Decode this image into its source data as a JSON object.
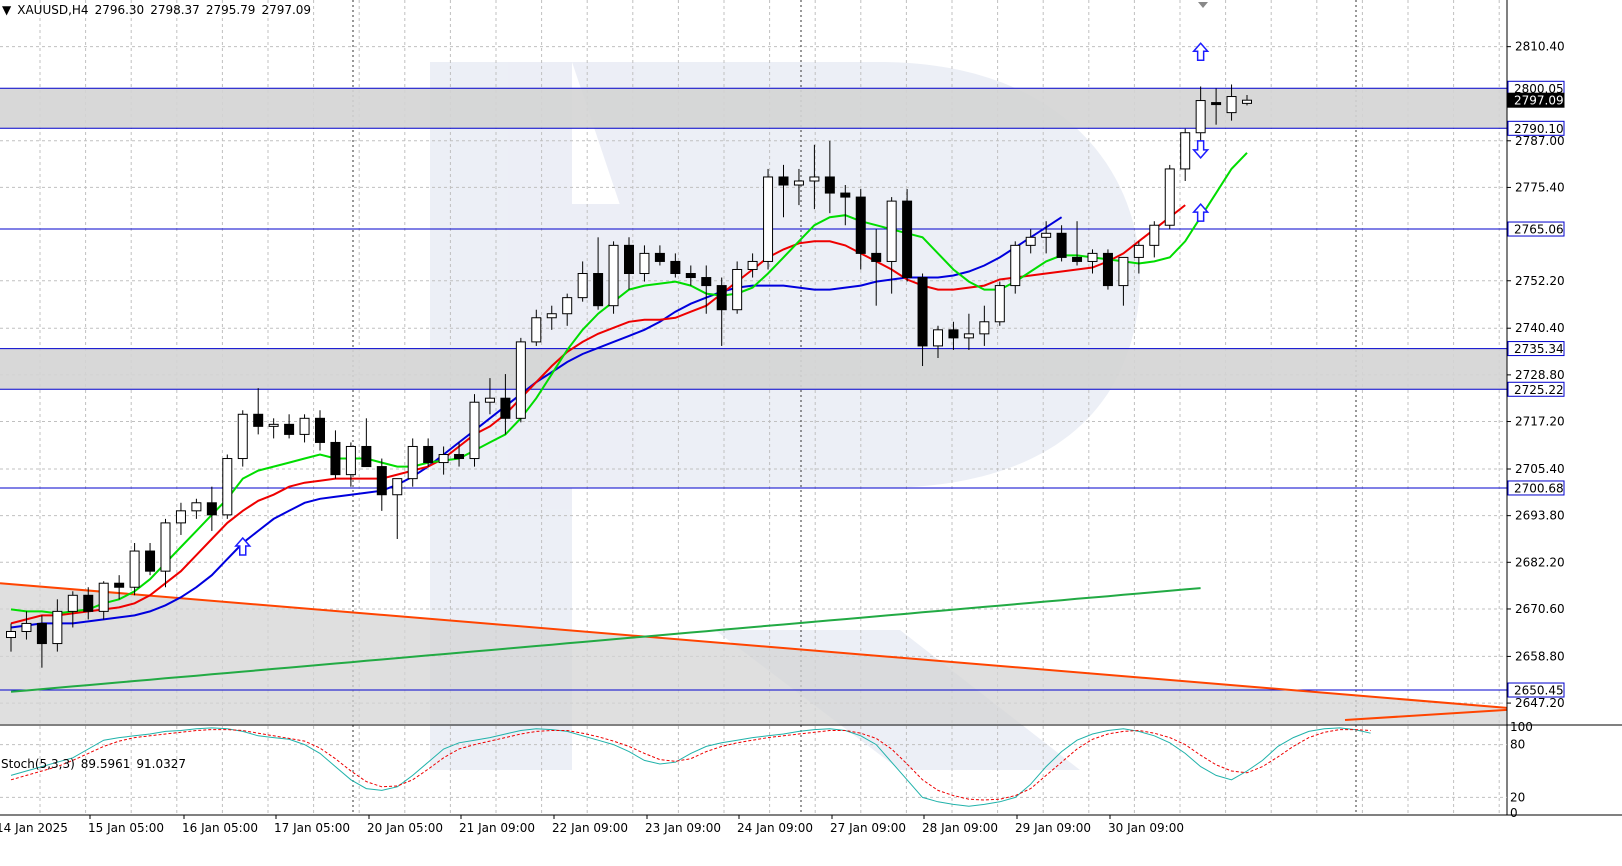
{
  "header": {
    "symbol": "XAUUSD,H4",
    "open": "2796.30",
    "high": "2798.37",
    "low": "2795.79",
    "close": "2797.09"
  },
  "stoch_header": {
    "label": "Stoch(5,3,3)",
    "main": "89.5961",
    "signal": "91.0327"
  },
  "colors": {
    "background": "#ffffff",
    "grid": "#c0c0c0",
    "level_line": "#0000cc",
    "zone_fill": "#d4d4d4",
    "ma_fast": "#00dd00",
    "ma_mid": "#ee0000",
    "ma_slow": "#0000dd",
    "ma_long": "#22aa44",
    "trendline": "#ff4400",
    "stoch_main": "#20b2aa",
    "stoch_signal": "#ee0000",
    "candle_up": "#ffffff",
    "candle_down": "#000000",
    "arrow": "#1c1cff"
  },
  "chart_data": {
    "type": "candlestick",
    "symbol": "XAUUSD",
    "timeframe": "H4",
    "ylim": [
      2642.0,
      2822.0
    ],
    "y_ticks": [
      "2810.40",
      "2787.00",
      "2775.40",
      "2752.20",
      "2740.40",
      "2728.80",
      "2717.20",
      "2705.40",
      "2693.80",
      "2682.20",
      "2670.60",
      "2658.80",
      "2647.20"
    ],
    "x_labels": [
      "14 Jan 2025",
      "15 Jan 05:00",
      "16 Jan 05:00",
      "17 Jan 05:00",
      "20 Jan 05:00",
      "21 Jan 09:00",
      "22 Jan 09:00",
      "23 Jan 09:00",
      "24 Jan 09:00",
      "27 Jan 09:00",
      "28 Jan 09:00",
      "29 Jan 09:00",
      "30 Jan 09:00"
    ],
    "levels": [
      {
        "label": "2800.05",
        "value": 2800.05
      },
      {
        "label": "2797.09",
        "value": 2797.09,
        "current": true
      },
      {
        "label": "2790.10",
        "value": 2790.1
      },
      {
        "label": "2765.06",
        "value": 2765.06
      },
      {
        "label": "2735.34",
        "value": 2735.34
      },
      {
        "label": "2725.22",
        "value": 2725.22
      },
      {
        "label": "2700.68",
        "value": 2700.68
      },
      {
        "label": "2650.45",
        "value": 2650.45
      }
    ],
    "zones": [
      {
        "from": 2790.1,
        "to": 2800.05
      },
      {
        "from": 2725.22,
        "to": 2735.34
      }
    ],
    "candles": [
      {
        "o": 2663.5,
        "h": 2667.0,
        "l": 2660.0,
        "c": 2665.0
      },
      {
        "o": 2665.0,
        "h": 2670.0,
        "l": 2663.0,
        "c": 2667.0
      },
      {
        "o": 2667.0,
        "h": 2669.0,
        "l": 2656.0,
        "c": 2662.0
      },
      {
        "o": 2662.0,
        "h": 2673.0,
        "l": 2660.0,
        "c": 2670.0
      },
      {
        "o": 2670.0,
        "h": 2675.0,
        "l": 2666.0,
        "c": 2674.0
      },
      {
        "o": 2674.0,
        "h": 2676.0,
        "l": 2668.0,
        "c": 2670.0
      },
      {
        "o": 2670.0,
        "h": 2677.5,
        "l": 2668.0,
        "c": 2677.0
      },
      {
        "o": 2677.0,
        "h": 2679.0,
        "l": 2673.0,
        "c": 2676.0
      },
      {
        "o": 2676.0,
        "h": 2687.0,
        "l": 2674.0,
        "c": 2685.0
      },
      {
        "o": 2685.0,
        "h": 2687.0,
        "l": 2679.0,
        "c": 2680.0
      },
      {
        "o": 2680.0,
        "h": 2693.0,
        "l": 2676.0,
        "c": 2692.0
      },
      {
        "o": 2692.0,
        "h": 2697.0,
        "l": 2689.0,
        "c": 2695.0
      },
      {
        "o": 2695.0,
        "h": 2698.0,
        "l": 2693.0,
        "c": 2697.0
      },
      {
        "o": 2697.0,
        "h": 2701.0,
        "l": 2690.0,
        "c": 2694.0
      },
      {
        "o": 2694.0,
        "h": 2709.0,
        "l": 2693.0,
        "c": 2708.0
      },
      {
        "o": 2708.0,
        "h": 2720.0,
        "l": 2706.0,
        "c": 2719.0
      },
      {
        "o": 2719.0,
        "h": 2725.5,
        "l": 2714.0,
        "c": 2716.0
      },
      {
        "o": 2716.0,
        "h": 2718.0,
        "l": 2713.0,
        "c": 2716.5
      },
      {
        "o": 2716.5,
        "h": 2719.0,
        "l": 2713.0,
        "c": 2714.0
      },
      {
        "o": 2714.0,
        "h": 2719.0,
        "l": 2712.0,
        "c": 2718.0
      },
      {
        "o": 2718.0,
        "h": 2720.0,
        "l": 2710.0,
        "c": 2712.0
      },
      {
        "o": 2712.0,
        "h": 2715.0,
        "l": 2703.0,
        "c": 2704.0
      },
      {
        "o": 2704.0,
        "h": 2712.0,
        "l": 2701.0,
        "c": 2711.0
      },
      {
        "o": 2711.0,
        "h": 2718.0,
        "l": 2706.0,
        "c": 2706.0
      },
      {
        "o": 2706.0,
        "h": 2708.0,
        "l": 2695.0,
        "c": 2699.0
      },
      {
        "o": 2699.0,
        "h": 2703.0,
        "l": 2688.0,
        "c": 2703.0
      },
      {
        "o": 2703.0,
        "h": 2713.0,
        "l": 2701.0,
        "c": 2711.0
      },
      {
        "o": 2711.0,
        "h": 2713.0,
        "l": 2706.0,
        "c": 2707.0
      },
      {
        "o": 2707.0,
        "h": 2711.0,
        "l": 2704.0,
        "c": 2709.0
      },
      {
        "o": 2709.0,
        "h": 2712.0,
        "l": 2706.0,
        "c": 2708.0
      },
      {
        "o": 2708.0,
        "h": 2724.0,
        "l": 2706.0,
        "c": 2722.0
      },
      {
        "o": 2722.0,
        "h": 2728.0,
        "l": 2719.0,
        "c": 2723.0
      },
      {
        "o": 2723.0,
        "h": 2729.0,
        "l": 2714.0,
        "c": 2718.0
      },
      {
        "o": 2718.0,
        "h": 2738.0,
        "l": 2717.0,
        "c": 2737.0
      },
      {
        "o": 2737.0,
        "h": 2745.0,
        "l": 2736.0,
        "c": 2743.0
      },
      {
        "o": 2743.0,
        "h": 2746.0,
        "l": 2740.0,
        "c": 2744.0
      },
      {
        "o": 2744.0,
        "h": 2749.0,
        "l": 2741.0,
        "c": 2748.0
      },
      {
        "o": 2748.0,
        "h": 2757.0,
        "l": 2747.0,
        "c": 2754.0
      },
      {
        "o": 2754.0,
        "h": 2763.0,
        "l": 2745.0,
        "c": 2746.0
      },
      {
        "o": 2746.0,
        "h": 2762.0,
        "l": 2744.0,
        "c": 2761.0
      },
      {
        "o": 2761.0,
        "h": 2763.0,
        "l": 2750.0,
        "c": 2754.0
      },
      {
        "o": 2754.0,
        "h": 2761.0,
        "l": 2752.0,
        "c": 2759.0
      },
      {
        "o": 2759.0,
        "h": 2761.0,
        "l": 2756.0,
        "c": 2757.0
      },
      {
        "o": 2757.0,
        "h": 2759.0,
        "l": 2753.0,
        "c": 2754.0
      },
      {
        "o": 2754.0,
        "h": 2756.0,
        "l": 2751.0,
        "c": 2753.0
      },
      {
        "o": 2753.0,
        "h": 2756.0,
        "l": 2744.0,
        "c": 2751.0
      },
      {
        "o": 2751.0,
        "h": 2753.0,
        "l": 2736.0,
        "c": 2745.0
      },
      {
        "o": 2745.0,
        "h": 2757.0,
        "l": 2744.0,
        "c": 2755.0
      },
      {
        "o": 2755.0,
        "h": 2759.0,
        "l": 2753.0,
        "c": 2757.0
      },
      {
        "o": 2757.0,
        "h": 2780.0,
        "l": 2755.0,
        "c": 2778.0
      },
      {
        "o": 2778.0,
        "h": 2781.0,
        "l": 2768.0,
        "c": 2776.0
      },
      {
        "o": 2776.0,
        "h": 2780.0,
        "l": 2771.0,
        "c": 2777.0
      },
      {
        "o": 2777.0,
        "h": 2786.0,
        "l": 2770.0,
        "c": 2778.0
      },
      {
        "o": 2778.0,
        "h": 2787.0,
        "l": 2769.0,
        "c": 2774.0
      },
      {
        "o": 2774.0,
        "h": 2776.0,
        "l": 2766.0,
        "c": 2773.0
      },
      {
        "o": 2773.0,
        "h": 2775.0,
        "l": 2755.0,
        "c": 2759.0
      },
      {
        "o": 2759.0,
        "h": 2765.0,
        "l": 2746.0,
        "c": 2757.0
      },
      {
        "o": 2757.0,
        "h": 2773.0,
        "l": 2749.0,
        "c": 2772.0
      },
      {
        "o": 2772.0,
        "h": 2775.0,
        "l": 2752.0,
        "c": 2753.0
      },
      {
        "o": 2753.0,
        "h": 2754.0,
        "l": 2731.0,
        "c": 2736.0
      },
      {
        "o": 2736.0,
        "h": 2741.0,
        "l": 2733.0,
        "c": 2740.0
      },
      {
        "o": 2740.0,
        "h": 2742.0,
        "l": 2735.0,
        "c": 2738.0
      },
      {
        "o": 2738.0,
        "h": 2744.0,
        "l": 2735.0,
        "c": 2739.0
      },
      {
        "o": 2739.0,
        "h": 2746.0,
        "l": 2736.0,
        "c": 2742.0
      },
      {
        "o": 2742.0,
        "h": 2752.0,
        "l": 2741.0,
        "c": 2751.0
      },
      {
        "o": 2751.0,
        "h": 2762.0,
        "l": 2749.0,
        "c": 2761.0
      },
      {
        "o": 2761.0,
        "h": 2765.0,
        "l": 2759.0,
        "c": 2763.0
      },
      {
        "o": 2763.0,
        "h": 2767.0,
        "l": 2759.0,
        "c": 2764.0
      },
      {
        "o": 2764.0,
        "h": 2766.0,
        "l": 2757.0,
        "c": 2758.0
      },
      {
        "o": 2758.0,
        "h": 2767.0,
        "l": 2756.0,
        "c": 2757.0
      },
      {
        "o": 2757.0,
        "h": 2760.0,
        "l": 2754.0,
        "c": 2759.0
      },
      {
        "o": 2759.0,
        "h": 2760.0,
        "l": 2750.0,
        "c": 2751.0
      },
      {
        "o": 2751.0,
        "h": 2758.0,
        "l": 2746.0,
        "c": 2758.0
      },
      {
        "o": 2758.0,
        "h": 2762.0,
        "l": 2754.0,
        "c": 2761.0
      },
      {
        "o": 2761.0,
        "h": 2767.0,
        "l": 2758.0,
        "c": 2766.0
      },
      {
        "o": 2766.0,
        "h": 2781.0,
        "l": 2765.0,
        "c": 2780.0
      },
      {
        "o": 2780.0,
        "h": 2790.0,
        "l": 2777.0,
        "c": 2789.0
      },
      {
        "o": 2789.0,
        "h": 2800.5,
        "l": 2786.0,
        "c": 2797.0
      },
      {
        "o": 2796.5,
        "h": 2800.0,
        "l": 2791.0,
        "c": 2796.0
      },
      {
        "o": 2794.0,
        "h": 2801.0,
        "l": 2792.0,
        "c": 2798.0
      },
      {
        "o": 2796.3,
        "h": 2798.37,
        "l": 2795.79,
        "c": 2797.09
      }
    ],
    "ma_fast": [
      2670.5,
      2670.0,
      2670.0,
      2669.5,
      2670.0,
      2670.5,
      2672.0,
      2673.0,
      2675.0,
      2678.0,
      2682.0,
      2686.0,
      2690.0,
      2694.0,
      2698.0,
      2703.0,
      2705.0,
      2706.0,
      2707.0,
      2708.0,
      2709.0,
      2708.0,
      2708.0,
      2708.0,
      2707.0,
      2706.0,
      2706.0,
      2707.0,
      2707.5,
      2708.0,
      2710.0,
      2712.0,
      2714.0,
      2718.0,
      2723.0,
      2729.0,
      2735.0,
      2740.0,
      2744.0,
      2747.0,
      2750.0,
      2751.0,
      2751.5,
      2752.0,
      2751.0,
      2749.0,
      2748.5,
      2749.0,
      2750.5,
      2754.0,
      2758.0,
      2762.0,
      2766.0,
      2768.0,
      2768.5,
      2767.0,
      2766.0,
      2765.0,
      2764.0,
      2763.0,
      2759.0,
      2755.0,
      2752.0,
      2750.0,
      2750.0,
      2752.0,
      2754.5,
      2757.0,
      2758.5,
      2758.5,
      2758.0,
      2757.5,
      2757.0,
      2756.5,
      2757.0,
      2758.0,
      2762.0,
      2768.0,
      2774.0,
      2780.0,
      2784.0
    ],
    "ma_mid": [
      2667.0,
      2668.0,
      2669.0,
      2669.0,
      2669.5,
      2670.0,
      2670.5,
      2671.0,
      2672.0,
      2674.0,
      2677.0,
      2680.0,
      2684.0,
      2688.0,
      2692.0,
      2695.0,
      2697.5,
      2699.0,
      2701.0,
      2702.0,
      2702.5,
      2703.0,
      2703.0,
      2703.0,
      2703.0,
      2704.0,
      2705.0,
      2706.0,
      2708.0,
      2711.0,
      2714.0,
      2716.0,
      2719.0,
      2723.0,
      2727.0,
      2731.0,
      2734.5,
      2737.0,
      2739.0,
      2740.5,
      2742.0,
      2742.5,
      2742.5,
      2743.0,
      2744.5,
      2746.0,
      2749.0,
      2752.0,
      2755.0,
      2758.0,
      2760.0,
      2761.5,
      2762.0,
      2762.0,
      2761.0,
      2759.0,
      2757.0,
      2755.0,
      2752.5,
      2751.0,
      2750.0,
      2750.0,
      2750.5,
      2751.0,
      2752.5,
      2753.0,
      2753.5,
      2754.0,
      2754.5,
      2755.0,
      2755.5,
      2757.0,
      2759.0,
      2762.0,
      2765.0,
      2768.0,
      2771.0
    ],
    "ma_slow": [
      2666.0,
      2666.5,
      2667.0,
      2667.0,
      2667.0,
      2667.5,
      2668.0,
      2668.5,
      2669.0,
      2670.0,
      2671.5,
      2673.5,
      2676.0,
      2679.0,
      2683.0,
      2687.0,
      2690.0,
      2693.0,
      2695.0,
      2697.0,
      2698.0,
      2698.5,
      2699.0,
      2699.5,
      2700.0,
      2701.5,
      2703.5,
      2706.0,
      2709.0,
      2712.0,
      2715.0,
      2718.0,
      2721.0,
      2724.0,
      2727.0,
      2729.5,
      2732.0,
      2734.0,
      2735.5,
      2737.0,
      2738.5,
      2740.0,
      2742.0,
      2744.5,
      2746.5,
      2748.0,
      2749.5,
      2750.5,
      2751.0,
      2751.0,
      2751.0,
      2750.5,
      2750.0,
      2750.0,
      2750.5,
      2751.0,
      2752.0,
      2752.5,
      2753.0,
      2753.0,
      2753.0,
      2753.5,
      2754.5,
      2756.0,
      2758.0,
      2760.5,
      2763.0,
      2765.5,
      2768.0
    ]
  },
  "stochastic": {
    "ylim": [
      0,
      100
    ],
    "ticks": [
      "100",
      "80",
      "20",
      "0"
    ],
    "main": [
      45,
      50,
      55,
      60,
      65,
      75,
      85,
      88,
      90,
      92,
      95,
      96,
      98,
      99,
      98,
      95,
      90,
      88,
      86,
      80,
      70,
      55,
      40,
      30,
      28,
      32,
      45,
      60,
      75,
      82,
      85,
      88,
      92,
      96,
      98,
      97,
      95,
      90,
      85,
      80,
      72,
      62,
      58,
      60,
      70,
      78,
      82,
      85,
      88,
      90,
      92,
      95,
      97,
      98,
      96,
      90,
      80,
      60,
      40,
      20,
      15,
      12,
      10,
      12,
      15,
      20,
      35,
      55,
      72,
      85,
      92,
      96,
      98,
      95,
      90,
      82,
      70,
      55,
      45,
      40,
      50,
      62,
      78,
      88,
      95,
      98,
      99,
      97,
      93
    ],
    "signal": [
      40,
      45,
      50,
      55,
      62,
      70,
      78,
      84,
      88,
      90,
      92,
      94,
      96,
      97,
      97,
      96,
      93,
      90,
      87,
      84,
      76,
      64,
      50,
      38,
      32,
      33,
      40,
      52,
      65,
      75,
      80,
      84,
      88,
      92,
      95,
      96,
      96,
      93,
      89,
      84,
      78,
      70,
      63,
      61,
      64,
      72,
      78,
      82,
      85,
      88,
      90,
      92,
      94,
      96,
      96,
      93,
      87,
      75,
      58,
      40,
      28,
      22,
      18,
      17,
      18,
      22,
      30,
      45,
      60,
      75,
      86,
      92,
      95,
      96,
      93,
      88,
      80,
      68,
      57,
      50,
      48,
      55,
      66,
      78,
      88,
      94,
      97,
      97,
      96
    ]
  },
  "annotations": {
    "arrows_up": [
      {
        "x": 20,
        "y": 2686.0
      },
      {
        "x": 77,
        "y": 2809.0
      },
      {
        "x": 77,
        "y": 2769.0
      }
    ],
    "arrows_down": [
      {
        "x": 77,
        "y": 2785.0
      }
    ]
  }
}
